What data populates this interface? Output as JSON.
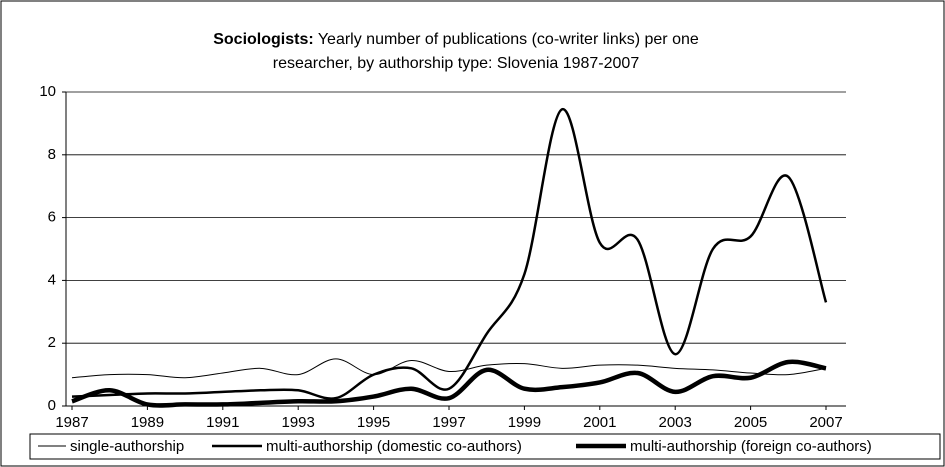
{
  "chart_data": {
    "type": "line",
    "title": [
      "Sociologists:",
      "Yearly number of publications (co-writer links) per one",
      "researcher, by authorship type: Slovenia 1987-2007"
    ],
    "x": [
      1987,
      1988,
      1989,
      1990,
      1991,
      1992,
      1993,
      1994,
      1995,
      1996,
      1997,
      1998,
      1999,
      2000,
      2001,
      2002,
      2003,
      2004,
      2005,
      2006,
      2007
    ],
    "series": [
      {
        "name": "single-authorship",
        "color": "#000000",
        "width": 1,
        "values": [
          0.9,
          1.0,
          1.0,
          0.9,
          1.05,
          1.2,
          1.0,
          1.5,
          1.0,
          1.45,
          1.1,
          1.3,
          1.35,
          1.2,
          1.3,
          1.3,
          1.2,
          1.15,
          1.05,
          1.0,
          1.2
        ]
      },
      {
        "name": "multi-authorship (domestic co-authors)",
        "color": "#000000",
        "width": 2.5,
        "values": [
          0.3,
          0.35,
          0.4,
          0.4,
          0.45,
          0.5,
          0.5,
          0.25,
          1.0,
          1.2,
          0.55,
          2.3,
          4.2,
          9.45,
          5.2,
          5.3,
          1.65,
          5.0,
          5.4,
          7.3,
          3.3
        ]
      },
      {
        "name": "multi-authorship (foreign co-authors)",
        "color": "#000000",
        "width": 4.5,
        "values": [
          0.15,
          0.5,
          0.05,
          0.05,
          0.05,
          0.1,
          0.15,
          0.15,
          0.3,
          0.55,
          0.25,
          1.15,
          0.55,
          0.6,
          0.75,
          1.05,
          0.45,
          0.95,
          0.9,
          1.4,
          1.2
        ]
      }
    ],
    "xlim": [
      1987,
      2007
    ],
    "xticks": [
      1987,
      1989,
      1991,
      1993,
      1995,
      1997,
      1999,
      2001,
      2003,
      2005,
      2007
    ],
    "ylim": [
      0,
      10
    ],
    "yticks": [
      0,
      2,
      4,
      6,
      8,
      10
    ],
    "grid": true,
    "legend": "bottom"
  }
}
